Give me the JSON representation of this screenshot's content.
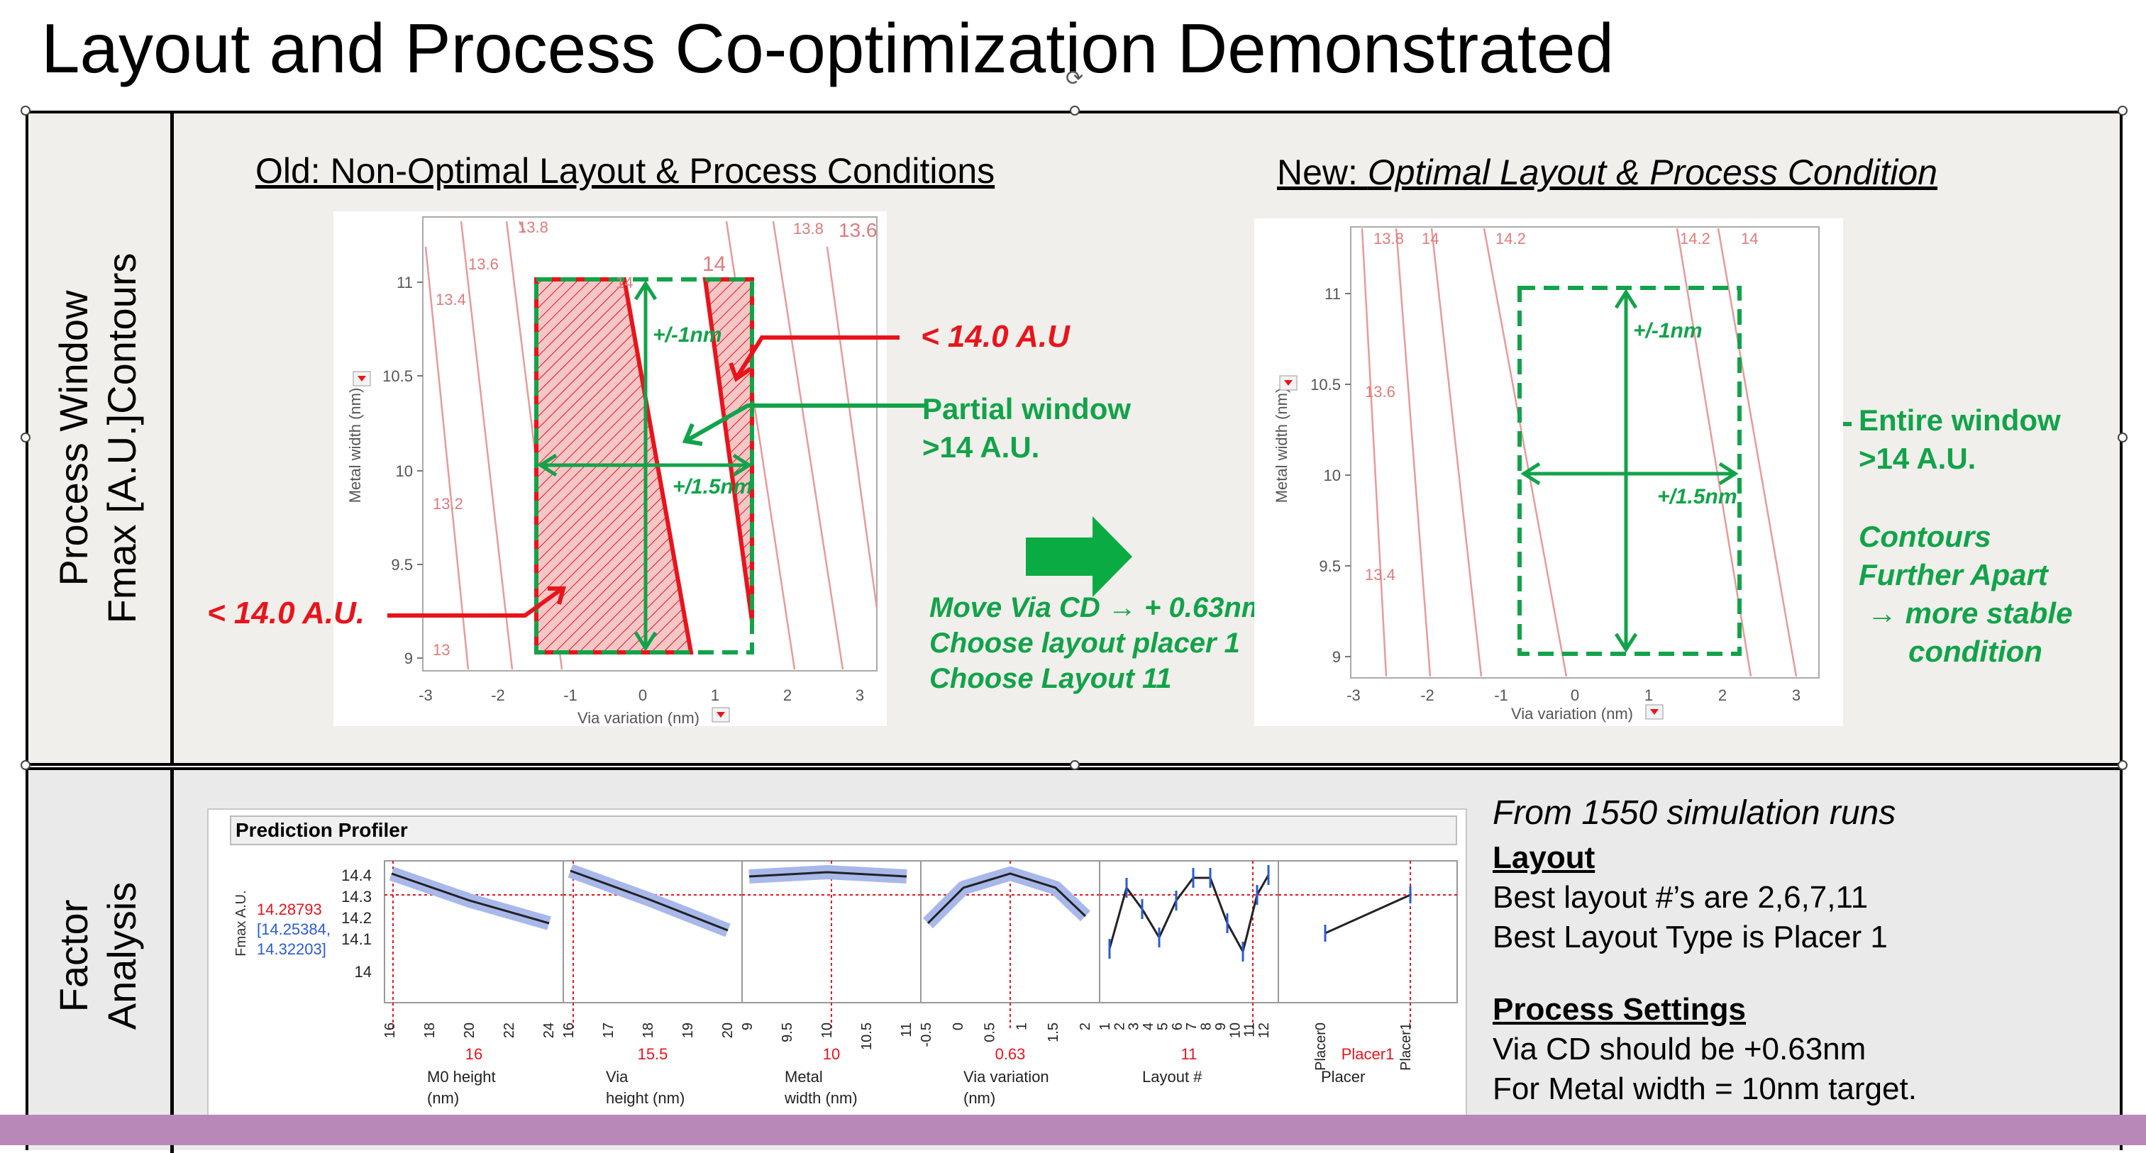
{
  "slide_title": "Layout and Process Co-optimization Demonstrated",
  "colors": {
    "green": "#12a34a",
    "red": "#e8141c",
    "contour": "#e89a9a",
    "purple_band": "#b889b8",
    "profile_blue": "#2a5bd7"
  },
  "top_section": {
    "side_label_line1": "Process Window",
    "side_label_line2": "Fmax [A.U.]Contours",
    "old": {
      "heading": "Old: Non-Optimal Layout & Process Conditions",
      "plot": {
        "ylabel": "Metal width (nm)",
        "xlabel": "Via variation (nm)",
        "y_ticks": [
          "11",
          "10.5",
          "10",
          "9.5",
          "9"
        ],
        "x_ticks": [
          "-3",
          "-2",
          "-1",
          "0",
          "1",
          "2",
          "3"
        ],
        "contour_labels": [
          "13.8",
          "13.6",
          "13.4",
          "13.2",
          "13",
          "14",
          "14",
          "13.8",
          "13.6"
        ],
        "vert_arrow_label": "+/-1nm",
        "horiz_arrow_label": "+/1.5nm"
      },
      "red_callout_right": "< 14.0 A.U",
      "red_callout_left": "< 14.0 A.U.",
      "green_callout_line1": "Partial window",
      "green_callout_line2": ">14 A.U."
    },
    "move": {
      "line1": "Move Via CD → + 0.63nm",
      "line2": "Choose layout placer 1",
      "line3": "Choose Layout 11"
    },
    "new": {
      "heading_prefix": "New: ",
      "heading_italic": "Optimal Layout & Process Condition",
      "plot": {
        "ylabel": "Metal width (nm)",
        "xlabel": "Via variation (nm)",
        "y_ticks": [
          "11",
          "10.5",
          "10",
          "9.5",
          "9"
        ],
        "x_ticks": [
          "-3",
          "-2",
          "-1",
          "0",
          "1",
          "2",
          "3"
        ],
        "contour_labels": [
          "13.8",
          "14",
          "14.2",
          "14.2",
          "14",
          "13.6",
          "13.4"
        ],
        "vert_arrow_label": "+/-1nm",
        "horiz_arrow_label": "+/1.5nm"
      },
      "green_callout_line1": "Entire window",
      "green_callout_line2": ">14 A.U.",
      "note_line1": "Contours",
      "note_line2": "Further Apart",
      "note_line3": "→ more stable",
      "note_line4": "condition"
    }
  },
  "bottom_section": {
    "side_label_line1": "Factor",
    "side_label_line2": "Analysis",
    "profiler": {
      "title": "Prediction Profiler",
      "ylabel": "Fmax A.U.",
      "current_value": "14.28793",
      "ci_line1": "[14.25384,",
      "ci_line2": "14.32203]",
      "y_ticks": [
        "14.4",
        "14.3",
        "14.2",
        "14.1",
        "14"
      ],
      "factors": [
        {
          "ticks": [
            "16",
            "18",
            "20",
            "22",
            "24"
          ],
          "current": "16",
          "label_line1": "M0 height",
          "label_line2": "(nm)"
        },
        {
          "ticks": [
            "16",
            "17",
            "18",
            "19",
            "20"
          ],
          "current": "15.5",
          "label_line1": "Via",
          "label_line2": "height (nm)"
        },
        {
          "ticks": [
            "9",
            "9.5",
            "10",
            "10.5",
            "11"
          ],
          "current": "10",
          "label_line1": "Metal",
          "label_line2": "width (nm)"
        },
        {
          "ticks": [
            "-0.5",
            "0",
            "0.5",
            "1",
            "1.5",
            "2"
          ],
          "current": "0.63",
          "label_line1": "Via variation",
          "label_line2": "(nm)"
        },
        {
          "ticks": [
            "1",
            "2",
            "3",
            "4",
            "5",
            "6",
            "7",
            "8",
            "9",
            "10",
            "11",
            "12"
          ],
          "current": "11",
          "label_line1": "Layout #",
          "label_line2": ""
        },
        {
          "ticks": [
            "Placer0",
            "Placer1"
          ],
          "current": "Placer1",
          "label_line1": "Placer",
          "label_line2": ""
        }
      ]
    },
    "summary": {
      "intro": "From 1550 simulation runs",
      "layout_heading": "Layout",
      "layout_line1": "Best layout #’s are 2,6,7,11",
      "layout_line2": "Best Layout Type is Placer 1",
      "process_heading": "Process Settings",
      "process_line1": "Via CD should be +0.63nm",
      "process_line2": "For Metal width = 10nm target."
    }
  }
}
